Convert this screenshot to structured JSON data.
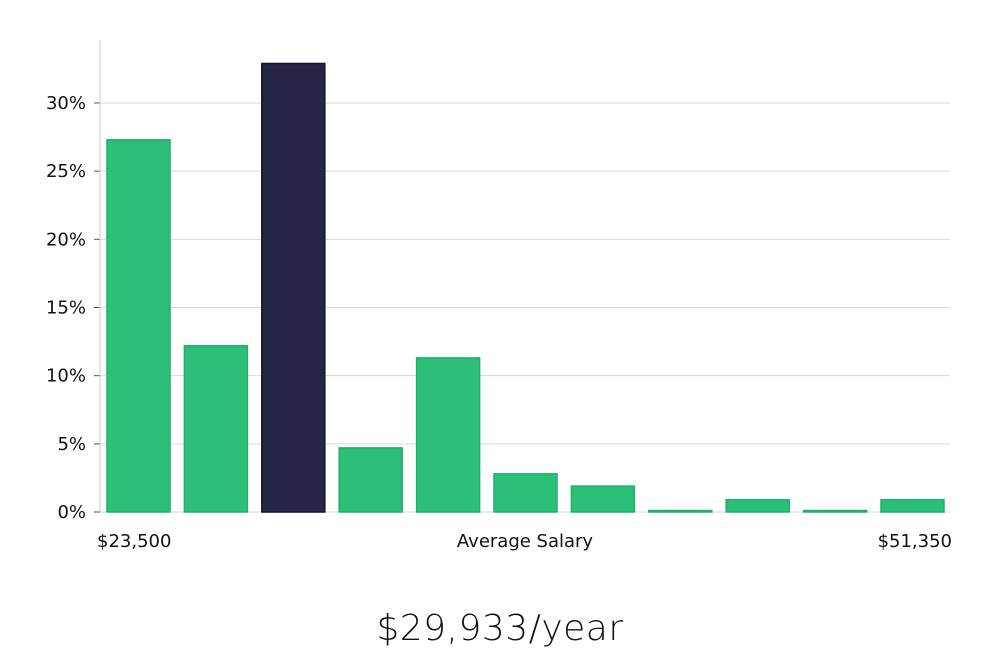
{
  "chart_data": {
    "type": "bar",
    "title": "",
    "xlabel": "Average Salary",
    "ylabel": "",
    "x_min_label": "$23,500",
    "x_max_label": "$51,350",
    "ylim": [
      0,
      34
    ],
    "yticks": [
      0,
      5,
      10,
      15,
      20,
      25,
      30
    ],
    "ytick_labels": [
      "0%",
      "5%",
      "10%",
      "15%",
      "20%",
      "25%",
      "30%"
    ],
    "grid": true,
    "values": [
      27.3,
      12.2,
      32.9,
      4.7,
      11.3,
      2.8,
      1.9,
      0.05,
      0.9,
      0.05,
      0.9
    ],
    "highlight_index": 2,
    "colors": {
      "bar": "#2bbf78",
      "bar_edge": "#22b06c",
      "highlight": "#272546",
      "highlight_edge": "#15142c",
      "grid": "#d9d9d9",
      "axis": "#cccccc"
    }
  },
  "summary": {
    "salary_text": "$29,933/year"
  }
}
